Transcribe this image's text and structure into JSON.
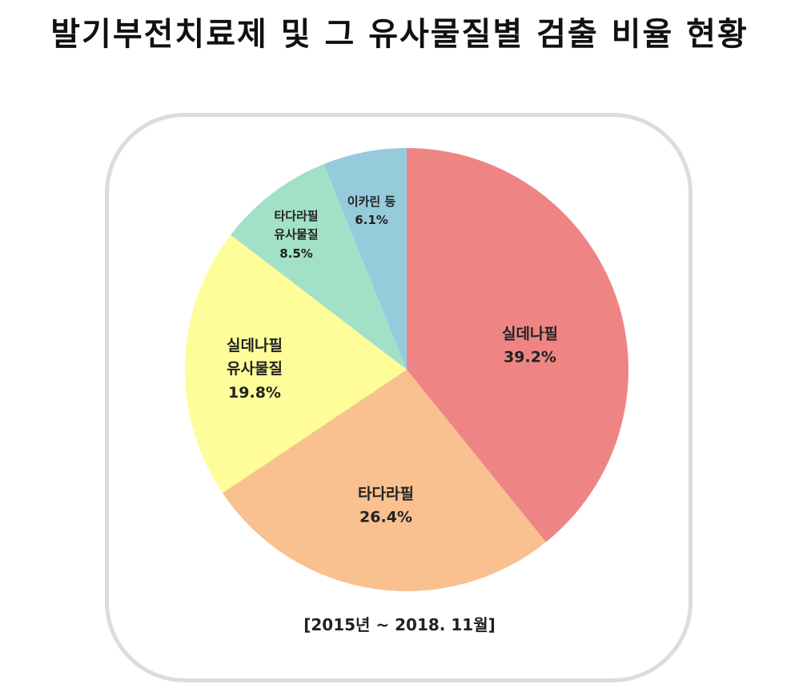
{
  "title": "발기부전치료제 및 그 유사물질별 검출 비율 현황",
  "period": "[2015년 ~ 2018. 11월]",
  "slices": [
    {
      "name": "실데나필",
      "line1": "실데나필",
      "line2": "",
      "pct": "39.2%",
      "value": 39.2,
      "color": "#ee8584"
    },
    {
      "name": "타다라필",
      "line1": "타다라필",
      "line2": "",
      "pct": "26.4%",
      "value": 26.4,
      "color": "#f9c090"
    },
    {
      "name": "실데나필 유사물질",
      "line1": "실데나필",
      "line2": "유사물질",
      "pct": "19.8%",
      "value": 19.8,
      "color": "#fefd99"
    },
    {
      "name": "타다라필 유사물질",
      "line1": "타다라필",
      "line2": "유사물질",
      "pct": "8.5%",
      "value": 8.5,
      "color": "#a2e1c8"
    },
    {
      "name": "이카린 등",
      "line1": "이카린 등",
      "line2": "",
      "pct": "6.1%",
      "value": 6.1,
      "color": "#96cbdc"
    }
  ],
  "chart_data": {
    "type": "pie",
    "title": "발기부전치료제 및 그 유사물질별 검출 비율 현황",
    "subtitle": "[2015년 ~ 2018. 11월]",
    "categories": [
      "실데나필",
      "타다라필",
      "실데나필 유사물질",
      "타다라필 유사물질",
      "이카린 등"
    ],
    "values": [
      39.2,
      26.4,
      19.8,
      8.5,
      6.1
    ],
    "unit": "%",
    "colors": [
      "#ee8584",
      "#f9c090",
      "#fefd99",
      "#a2e1c8",
      "#96cbdc"
    ],
    "start_angle": "12 o'clock, clockwise",
    "legend": "none (data labels inside slices)"
  }
}
